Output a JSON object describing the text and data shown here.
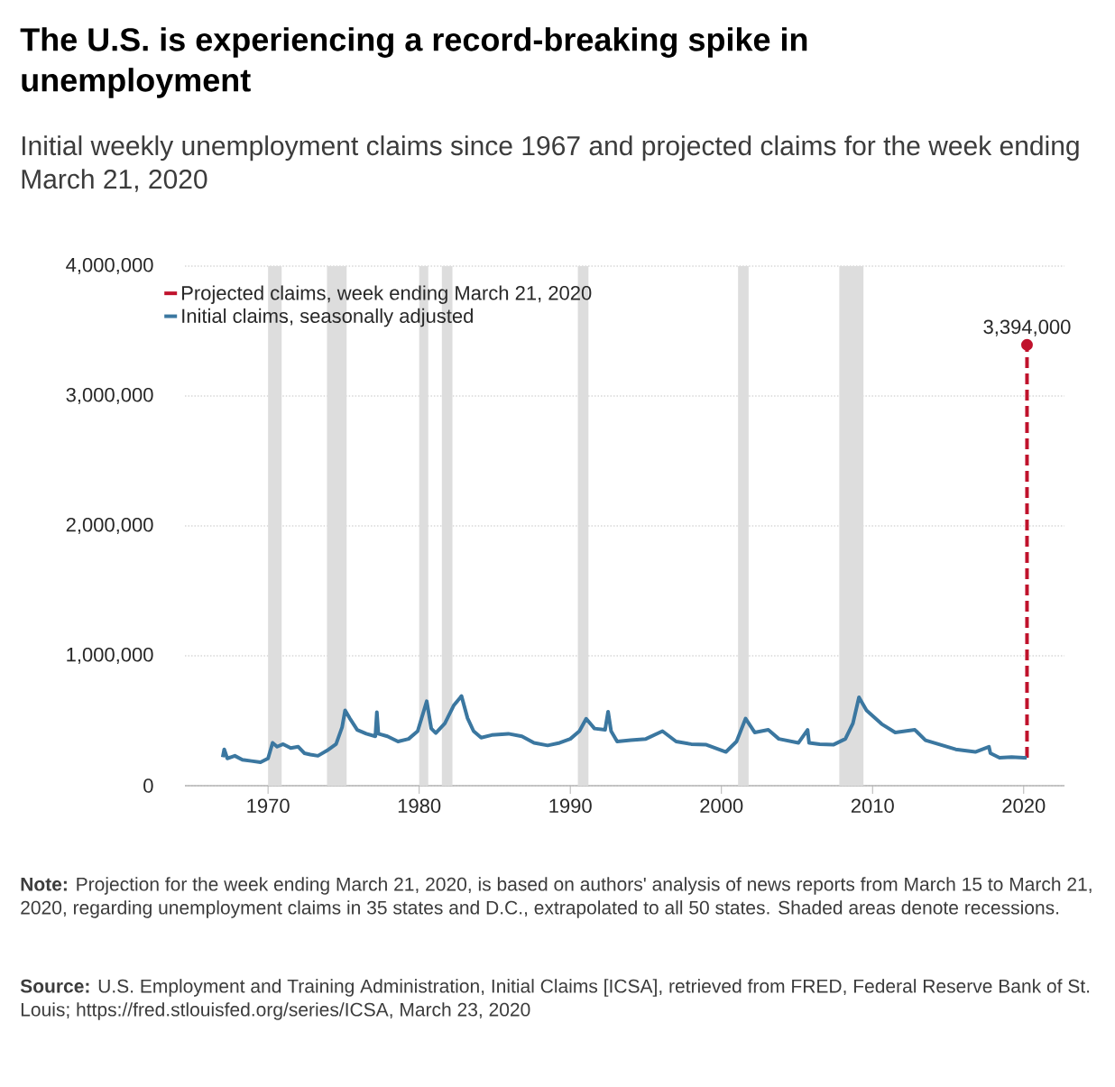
{
  "chart_data": {
    "type": "line",
    "title": "The U.S. is experiencing a record-breaking spike in unemployment",
    "subtitle": "Initial weekly unemployment claims since 1967 and projected claims for the week ending March 21, 2020",
    "series": [
      {
        "name": "Projected claims, week ending March 21, 2020",
        "color": "#c0122c",
        "line_style": "dashed",
        "marker": "circle",
        "x": [
          2020.22,
          2020.22
        ],
        "values": [
          215000,
          3394000
        ],
        "value_labels": [
          null,
          "3,394,000"
        ]
      },
      {
        "name": "Initial claims, seasonally adjusted",
        "color": "#3b77a0",
        "line_style": "solid",
        "marker": "none",
        "x": [
          1967.0,
          1967.1,
          1967.3,
          1967.8,
          1968.3,
          1968.9,
          1969.5,
          1970.0,
          1970.3,
          1970.6,
          1971.0,
          1971.5,
          1972.0,
          1972.4,
          1972.8,
          1973.3,
          1973.9,
          1974.5,
          1974.9,
          1975.1,
          1975.4,
          1975.9,
          1976.5,
          1977.1,
          1977.2,
          1977.3,
          1977.9,
          1978.6,
          1979.3,
          1979.9,
          1980.5,
          1980.8,
          1981.1,
          1981.7,
          1982.3,
          1982.8,
          1983.2,
          1983.6,
          1984.1,
          1984.8,
          1985.9,
          1986.8,
          1987.6,
          1988.5,
          1989.3,
          1990.0,
          1990.6,
          1991.05,
          1991.6,
          1992.3,
          1992.5,
          1992.7,
          1993.1,
          1994.0,
          1995.0,
          1996.1,
          1997.0,
          1998.0,
          1999.0,
          2000.3,
          2001.0,
          2001.6,
          2002.2,
          2003.1,
          2003.8,
          2005.1,
          2005.7,
          2005.8,
          2006.5,
          2007.4,
          2008.2,
          2008.7,
          2009.1,
          2009.6,
          2010.6,
          2011.5,
          2012.8,
          2013.5,
          2014.5,
          2015.5,
          2016.8,
          2017.7,
          2017.8,
          2018.4,
          2019.2,
          2020.0,
          2020.2
        ],
        "values": [
          220000,
          280000,
          210000,
          230000,
          200000,
          190000,
          180000,
          210000,
          330000,
          300000,
          320000,
          290000,
          300000,
          250000,
          240000,
          230000,
          270000,
          320000,
          450000,
          580000,
          520000,
          430000,
          400000,
          380000,
          566000,
          400000,
          380000,
          340000,
          360000,
          420000,
          650000,
          440000,
          405000,
          480000,
          620000,
          690000,
          520000,
          420000,
          370000,
          390000,
          400000,
          380000,
          330000,
          310000,
          330000,
          360000,
          420000,
          515000,
          440000,
          430000,
          570000,
          420000,
          340000,
          350000,
          360000,
          420000,
          340000,
          320000,
          315000,
          260000,
          340000,
          517000,
          410000,
          430000,
          360000,
          330000,
          430000,
          330000,
          320000,
          315000,
          360000,
          480000,
          680000,
          580000,
          475000,
          410000,
          430000,
          350000,
          315000,
          280000,
          260000,
          300000,
          250000,
          215000,
          220000,
          215000,
          215000
        ]
      }
    ],
    "xlim": [
      1964.5,
      2022.7
    ],
    "ylim": [
      0,
      4000000
    ],
    "xticks": [
      1970,
      1980,
      1990,
      2000,
      2010,
      2020
    ],
    "yticks": [
      {
        "value": 0,
        "label": "0"
      },
      {
        "value": 1000000,
        "label": "1,000,000"
      },
      {
        "value": 2000000,
        "label": "2,000,000"
      },
      {
        "value": 3000000,
        "label": "3,000,000"
      },
      {
        "value": 4000000,
        "label": "4,000,000"
      }
    ],
    "grid": "y",
    "legend": "top left",
    "bands": [
      {
        "axis": "x",
        "from": 1970.0,
        "to": 1970.9,
        "color": "#dddddd"
      },
      {
        "axis": "x",
        "from": 1973.9,
        "to": 1975.2,
        "color": "#dddddd"
      },
      {
        "axis": "x",
        "from": 1980.0,
        "to": 1980.6,
        "color": "#dddddd"
      },
      {
        "axis": "x",
        "from": 1981.5,
        "to": 1982.2,
        "color": "#dddddd"
      },
      {
        "axis": "x",
        "from": 1990.5,
        "to": 1991.2,
        "color": "#dddddd"
      },
      {
        "axis": "x",
        "from": 2001.1,
        "to": 2001.8,
        "color": "#dddddd"
      },
      {
        "axis": "x",
        "from": 2007.8,
        "to": 2009.4,
        "color": "#dddddd"
      }
    ],
    "annotations": [
      "**Note:** Projection for the week ending March 21, 2020, is based on authors' analysis of news reports from March 15 to March 21, 2020, regarding unemployment claims in 35 states and D.C., extrapolated to all 50 states. Shaded areas denote recessions.",
      "**Source:** U.S. Employment and Training Administration, Initial Claims [ICSA], retrieved from FRED, Federal Reserve Bank of St. Louis; https://fred.stlouisfed.org/series/ICSA, March 23, 2020"
    ]
  }
}
